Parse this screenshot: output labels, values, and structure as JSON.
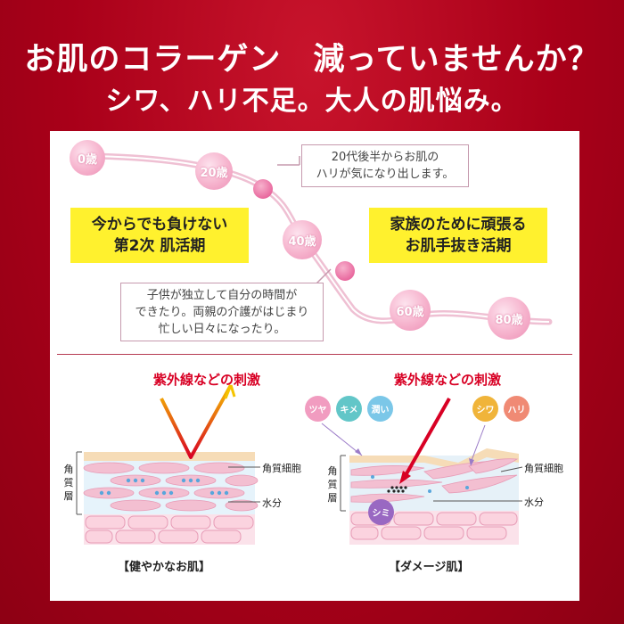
{
  "header": {
    "line1": "お肌のコラーゲン　減っていませんか？",
    "line2": "シワ、ハリ不足。大人の肌悩み。"
  },
  "timeline": {
    "ages": [
      "0歳",
      "20歳",
      "40歳",
      "60歳",
      "80歳"
    ],
    "note_top": [
      "20代後半からお肌の",
      "ハリが気になり出します。"
    ],
    "note_bottom": [
      "子供が独立して自分の時間が",
      "できたり。両親の介護がはじまり",
      "忙しい日々になったり。"
    ],
    "yellow_left": [
      "今からでも負けない",
      "第2次 肌活期"
    ],
    "yellow_right": [
      "家族のために頑張る",
      "お肌手抜き活期"
    ]
  },
  "skin": {
    "stimulus_label": "紫外線などの刺激",
    "layer_label": "角質層",
    "cell_label": "角質細胞",
    "water_label": "水分",
    "healthy_caption": "【健やかなお肌】",
    "damaged_caption": "【ダメージ肌】",
    "good_bubbles": [
      "ツヤ",
      "キメ",
      "潤い"
    ],
    "bad_bubbles": [
      "シワ",
      "ハリ"
    ],
    "spot_label": "シミ"
  },
  "colors": {
    "background": "#b2041d",
    "highlight": "#fff12e",
    "accent_text": "#d80024"
  }
}
